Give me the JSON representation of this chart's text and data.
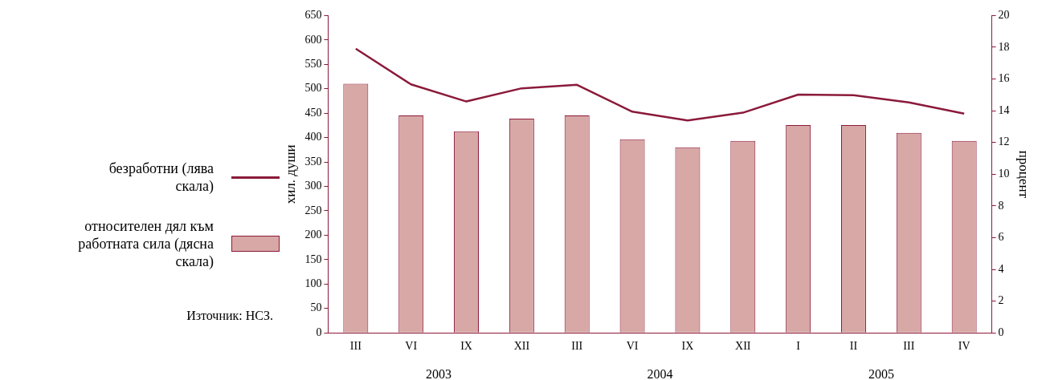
{
  "chart_data": {
    "type": "bar",
    "ylabel": "хил. души",
    "y2label": "процент",
    "categories": [
      "III",
      "VI",
      "IX",
      "XII",
      "III",
      "VI",
      "IX",
      "XII",
      "I",
      "II",
      "III",
      "IV"
    ],
    "series": [
      {
        "name": "безработни (лява скала)",
        "type": "line",
        "color": "#8b1a3a",
        "values": [
          582,
          509,
          474,
          501,
          508,
          453,
          435,
          451,
          488,
          487,
          472,
          449
        ]
      },
      {
        "name": "относителен дял към работната сила (дясна скала)",
        "axis": "y2",
        "color": "#d8a8a6",
        "values": [
          15.7,
          13.7,
          12.7,
          13.5,
          13.7,
          12.2,
          11.7,
          12.1,
          13.1,
          13.1,
          12.6,
          12.1
        ]
      }
    ],
    "ylim": [
      0,
      650
    ],
    "yticks": [
      0,
      50,
      100,
      150,
      200,
      250,
      300,
      350,
      400,
      450,
      500,
      550,
      600,
      650
    ],
    "y2lim": [
      0,
      20
    ],
    "y2ticks": [
      0,
      2,
      4,
      6,
      8,
      10,
      12,
      14,
      16,
      18,
      20
    ],
    "grid": false,
    "legend": "left",
    "annotations": [
      "2003",
      "2004",
      "2005",
      "Източник: НСЗ."
    ]
  }
}
